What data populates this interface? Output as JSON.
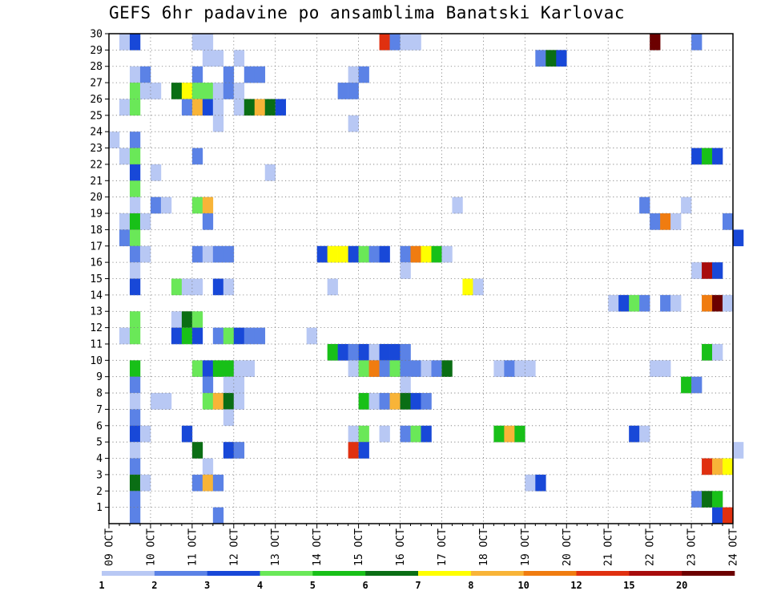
{
  "chart_data": {
    "type": "heatmap",
    "title": "GEFS 6hr padavine po ansamblima Banatski Karlovac",
    "x_tick_labels": [
      "09 OCT",
      "10 OCT",
      "11 OCT",
      "12 OCT",
      "13 OCT",
      "14 OCT",
      "15 OCT",
      "16 OCT",
      "17 OCT",
      "18 OCT",
      "19 OCT",
      "20 OCT",
      "21 OCT",
      "22 OCT",
      "23 OCT",
      "24 OCT"
    ],
    "y_tick_labels": [
      "1",
      "2",
      "3",
      "4",
      "5",
      "6",
      "7",
      "8",
      "9",
      "10",
      "11",
      "12",
      "13",
      "14",
      "15",
      "16",
      "17",
      "18",
      "19",
      "20",
      "21",
      "22",
      "23",
      "24",
      "25",
      "26",
      "27",
      "28",
      "29",
      "30"
    ],
    "x_range_days": [
      0,
      15
    ],
    "y_range_members": [
      0,
      30
    ],
    "steps_per_day": 4,
    "grid": true,
    "legend": {
      "placement": "bottom",
      "labels": [
        "1",
        "2",
        "3",
        "4",
        "5",
        "6",
        "7",
        "8",
        "10",
        "12",
        "15",
        "20"
      ],
      "colors": [
        "#b8c8f4",
        "#5b82e6",
        "#1848d8",
        "#6ae858",
        "#18c018",
        "#0a6e14",
        "#ffff00",
        "#f8b438",
        "#f07c10",
        "#e03010",
        "#a80c0c",
        "#6c0000"
      ]
    },
    "rows": [
      {
        "member": 30,
        "cells": [
          [
            1,
            "#b8c8f4"
          ],
          [
            2,
            "#1848d8"
          ],
          [
            8,
            "#b8c8f4"
          ],
          [
            9,
            "#b8c8f4"
          ],
          [
            26,
            "#e03010"
          ],
          [
            27,
            "#5b82e6"
          ],
          [
            28,
            "#b8c8f4"
          ],
          [
            29,
            "#b8c8f4"
          ],
          [
            52,
            "#6c0000"
          ],
          [
            56,
            "#5b82e6"
          ]
        ]
      },
      {
        "member": 29,
        "cells": [
          [
            9,
            "#b8c8f4"
          ],
          [
            10,
            "#b8c8f4"
          ],
          [
            12,
            "#b8c8f4"
          ],
          [
            41,
            "#5b82e6"
          ],
          [
            42,
            "#0a6e14"
          ],
          [
            43,
            "#1848d8"
          ]
        ]
      },
      {
        "member": 28,
        "cells": [
          [
            2,
            "#b8c8f4"
          ],
          [
            3,
            "#5b82e6"
          ],
          [
            8,
            "#5b82e6"
          ],
          [
            11,
            "#5b82e6"
          ],
          [
            13,
            "#5b82e6"
          ],
          [
            14,
            "#5b82e6"
          ],
          [
            23,
            "#b8c8f4"
          ],
          [
            24,
            "#5b82e6"
          ]
        ]
      },
      {
        "member": 27,
        "cells": [
          [
            2,
            "#6ae858"
          ],
          [
            3,
            "#b8c8f4"
          ],
          [
            4,
            "#b8c8f4"
          ],
          [
            6,
            "#0a6e14"
          ],
          [
            7,
            "#ffff00"
          ],
          [
            8,
            "#6ae858"
          ],
          [
            9,
            "#6ae858"
          ],
          [
            10,
            "#b8c8f4"
          ],
          [
            11,
            "#5b82e6"
          ],
          [
            12,
            "#b8c8f4"
          ],
          [
            22,
            "#5b82e6"
          ],
          [
            23,
            "#5b82e6"
          ]
        ]
      },
      {
        "member": 26,
        "cells": [
          [
            1,
            "#b8c8f4"
          ],
          [
            2,
            "#6ae858"
          ],
          [
            7,
            "#5b82e6"
          ],
          [
            8,
            "#f8b438"
          ],
          [
            9,
            "#1848d8"
          ],
          [
            10,
            "#b8c8f4"
          ],
          [
            12,
            "#b8c8f4"
          ],
          [
            13,
            "#0a6e14"
          ],
          [
            14,
            "#f8b438"
          ],
          [
            15,
            "#0a6e14"
          ],
          [
            16,
            "#1848d8"
          ]
        ]
      },
      {
        "member": 25,
        "cells": [
          [
            10,
            "#b8c8f4"
          ],
          [
            23,
            "#b8c8f4"
          ]
        ]
      },
      {
        "member": 24,
        "cells": [
          [
            0,
            "#b8c8f4"
          ],
          [
            2,
            "#5b82e6"
          ]
        ]
      },
      {
        "member": 23,
        "cells": [
          [
            1,
            "#b8c8f4"
          ],
          [
            2,
            "#6ae858"
          ],
          [
            8,
            "#5b82e6"
          ],
          [
            56,
            "#1848d8"
          ],
          [
            57,
            "#18c018"
          ],
          [
            58,
            "#1848d8"
          ]
        ]
      },
      {
        "member": 22,
        "cells": [
          [
            2,
            "#1848d8"
          ],
          [
            4,
            "#b8c8f4"
          ],
          [
            15,
            "#b8c8f4"
          ]
        ]
      },
      {
        "member": 21,
        "cells": [
          [
            2,
            "#6ae858"
          ]
        ]
      },
      {
        "member": 20,
        "cells": [
          [
            2,
            "#b8c8f4"
          ],
          [
            4,
            "#5b82e6"
          ],
          [
            5,
            "#b8c8f4"
          ],
          [
            8,
            "#6ae858"
          ],
          [
            9,
            "#f8b438"
          ],
          [
            33,
            "#b8c8f4"
          ],
          [
            51,
            "#5b82e6"
          ],
          [
            55,
            "#b8c8f4"
          ]
        ]
      },
      {
        "member": 19,
        "cells": [
          [
            1,
            "#b8c8f4"
          ],
          [
            2,
            "#18c018"
          ],
          [
            3,
            "#b8c8f4"
          ],
          [
            9,
            "#5b82e6"
          ],
          [
            52,
            "#5b82e6"
          ],
          [
            53,
            "#f07c10"
          ],
          [
            54,
            "#b8c8f4"
          ],
          [
            59,
            "#5b82e6"
          ]
        ]
      },
      {
        "member": 18,
        "cells": [
          [
            1,
            "#5b82e6"
          ],
          [
            2,
            "#6ae858"
          ],
          [
            60,
            "#1848d8"
          ]
        ]
      },
      {
        "member": 17,
        "cells": [
          [
            2,
            "#5b82e6"
          ],
          [
            3,
            "#b8c8f4"
          ],
          [
            8,
            "#5b82e6"
          ],
          [
            9,
            "#b8c8f4"
          ],
          [
            10,
            "#5b82e6"
          ],
          [
            11,
            "#5b82e6"
          ],
          [
            20,
            "#1848d8"
          ],
          [
            21,
            "#ffff00"
          ],
          [
            22,
            "#ffff00"
          ],
          [
            23,
            "#1848d8"
          ],
          [
            24,
            "#6ae858"
          ],
          [
            25,
            "#5b82e6"
          ],
          [
            26,
            "#1848d8"
          ],
          [
            28,
            "#5b82e6"
          ],
          [
            29,
            "#f07c10"
          ],
          [
            30,
            "#ffff00"
          ],
          [
            31,
            "#18c018"
          ],
          [
            32,
            "#b8c8f4"
          ]
        ]
      },
      {
        "member": 16,
        "cells": [
          [
            2,
            "#b8c8f4"
          ],
          [
            28,
            "#b8c8f4"
          ],
          [
            56,
            "#b8c8f4"
          ],
          [
            57,
            "#a80c0c"
          ],
          [
            58,
            "#1848d8"
          ]
        ]
      },
      {
        "member": 15,
        "cells": [
          [
            2,
            "#1848d8"
          ],
          [
            6,
            "#6ae858"
          ],
          [
            7,
            "#b8c8f4"
          ],
          [
            8,
            "#b8c8f4"
          ],
          [
            10,
            "#1848d8"
          ],
          [
            11,
            "#b8c8f4"
          ],
          [
            21,
            "#b8c8f4"
          ],
          [
            34,
            "#ffff00"
          ],
          [
            35,
            "#b8c8f4"
          ]
        ]
      },
      {
        "member": 14,
        "cells": [
          [
            48,
            "#b8c8f4"
          ],
          [
            49,
            "#1848d8"
          ],
          [
            50,
            "#6ae858"
          ],
          [
            51,
            "#5b82e6"
          ],
          [
            53,
            "#5b82e6"
          ],
          [
            54,
            "#b8c8f4"
          ],
          [
            57,
            "#f07c10"
          ],
          [
            58,
            "#6c0000"
          ],
          [
            59,
            "#b8c8f4"
          ]
        ]
      },
      {
        "member": 13,
        "cells": [
          [
            2,
            "#6ae858"
          ],
          [
            6,
            "#b8c8f4"
          ],
          [
            7,
            "#0a6e14"
          ],
          [
            8,
            "#6ae858"
          ]
        ]
      },
      {
        "member": 12,
        "cells": [
          [
            1,
            "#b8c8f4"
          ],
          [
            2,
            "#6ae858"
          ],
          [
            6,
            "#1848d8"
          ],
          [
            7,
            "#18c018"
          ],
          [
            8,
            "#1848d8"
          ],
          [
            10,
            "#5b82e6"
          ],
          [
            11,
            "#6ae858"
          ],
          [
            12,
            "#1848d8"
          ],
          [
            13,
            "#5b82e6"
          ],
          [
            14,
            "#5b82e6"
          ],
          [
            19,
            "#b8c8f4"
          ]
        ]
      },
      {
        "member": 11,
        "cells": [
          [
            21,
            "#18c018"
          ],
          [
            22,
            "#1848d8"
          ],
          [
            23,
            "#5b82e6"
          ],
          [
            24,
            "#1848d8"
          ],
          [
            25,
            "#b8c8f4"
          ],
          [
            26,
            "#1848d8"
          ],
          [
            27,
            "#1848d8"
          ],
          [
            28,
            "#5b82e6"
          ],
          [
            57,
            "#18c018"
          ],
          [
            58,
            "#b8c8f4"
          ]
        ]
      },
      {
        "member": 10,
        "cells": [
          [
            2,
            "#18c018"
          ],
          [
            8,
            "#6ae858"
          ],
          [
            9,
            "#1848d8"
          ],
          [
            10,
            "#18c018"
          ],
          [
            11,
            "#18c018"
          ],
          [
            12,
            "#b8c8f4"
          ],
          [
            13,
            "#b8c8f4"
          ],
          [
            23,
            "#b8c8f4"
          ],
          [
            24,
            "#6ae858"
          ],
          [
            25,
            "#f07c10"
          ],
          [
            26,
            "#5b82e6"
          ],
          [
            27,
            "#6ae858"
          ],
          [
            28,
            "#5b82e6"
          ],
          [
            29,
            "#5b82e6"
          ],
          [
            30,
            "#b8c8f4"
          ],
          [
            31,
            "#5b82e6"
          ],
          [
            32,
            "#0a6e14"
          ],
          [
            37,
            "#b8c8f4"
          ],
          [
            38,
            "#5b82e6"
          ],
          [
            39,
            "#b8c8f4"
          ],
          [
            40,
            "#b8c8f4"
          ],
          [
            52,
            "#b8c8f4"
          ],
          [
            53,
            "#b8c8f4"
          ]
        ]
      },
      {
        "member": 9,
        "cells": [
          [
            2,
            "#5b82e6"
          ],
          [
            9,
            "#5b82e6"
          ],
          [
            11,
            "#b8c8f4"
          ],
          [
            12,
            "#b8c8f4"
          ],
          [
            28,
            "#b8c8f4"
          ],
          [
            55,
            "#18c018"
          ],
          [
            56,
            "#5b82e6"
          ]
        ]
      },
      {
        "member": 8,
        "cells": [
          [
            2,
            "#b8c8f4"
          ],
          [
            4,
            "#b8c8f4"
          ],
          [
            5,
            "#b8c8f4"
          ],
          [
            9,
            "#6ae858"
          ],
          [
            10,
            "#f8b438"
          ],
          [
            11,
            "#0a6e14"
          ],
          [
            12,
            "#b8c8f4"
          ],
          [
            24,
            "#18c018"
          ],
          [
            25,
            "#b8c8f4"
          ],
          [
            26,
            "#5b82e6"
          ],
          [
            27,
            "#f8b438"
          ],
          [
            28,
            "#0a6e14"
          ],
          [
            29,
            "#1848d8"
          ],
          [
            30,
            "#5b82e6"
          ]
        ]
      },
      {
        "member": 7,
        "cells": [
          [
            2,
            "#5b82e6"
          ],
          [
            11,
            "#b8c8f4"
          ]
        ]
      },
      {
        "member": 6,
        "cells": [
          [
            2,
            "#1848d8"
          ],
          [
            3,
            "#b8c8f4"
          ],
          [
            7,
            "#1848d8"
          ],
          [
            23,
            "#b8c8f4"
          ],
          [
            24,
            "#6ae858"
          ],
          [
            26,
            "#b8c8f4"
          ],
          [
            28,
            "#5b82e6"
          ],
          [
            29,
            "#6ae858"
          ],
          [
            30,
            "#1848d8"
          ],
          [
            37,
            "#18c018"
          ],
          [
            38,
            "#f8b438"
          ],
          [
            39,
            "#18c018"
          ],
          [
            50,
            "#1848d8"
          ],
          [
            51,
            "#b8c8f4"
          ]
        ]
      },
      {
        "member": 5,
        "cells": [
          [
            2,
            "#b8c8f4"
          ],
          [
            8,
            "#0a6e14"
          ],
          [
            11,
            "#1848d8"
          ],
          [
            12,
            "#5b82e6"
          ],
          [
            23,
            "#e03010"
          ],
          [
            24,
            "#1848d8"
          ],
          [
            60,
            "#b8c8f4"
          ]
        ]
      },
      {
        "member": 4,
        "cells": [
          [
            2,
            "#5b82e6"
          ],
          [
            9,
            "#b8c8f4"
          ],
          [
            57,
            "#e03010"
          ],
          [
            58,
            "#f8b438"
          ],
          [
            59,
            "#ffff00"
          ]
        ]
      },
      {
        "member": 3,
        "cells": [
          [
            2,
            "#0a6e14"
          ],
          [
            3,
            "#b8c8f4"
          ],
          [
            8,
            "#5b82e6"
          ],
          [
            9,
            "#f8b438"
          ],
          [
            10,
            "#5b82e6"
          ],
          [
            40,
            "#b8c8f4"
          ],
          [
            41,
            "#1848d8"
          ]
        ]
      },
      {
        "member": 2,
        "cells": [
          [
            2,
            "#5b82e6"
          ],
          [
            56,
            "#5b82e6"
          ],
          [
            57,
            "#0a6e14"
          ],
          [
            58,
            "#18c018"
          ]
        ]
      },
      {
        "member": 1,
        "cells": [
          [
            2,
            "#5b82e6"
          ],
          [
            10,
            "#5b82e6"
          ],
          [
            58,
            "#1848d8"
          ],
          [
            59,
            "#e03010"
          ]
        ]
      }
    ]
  }
}
